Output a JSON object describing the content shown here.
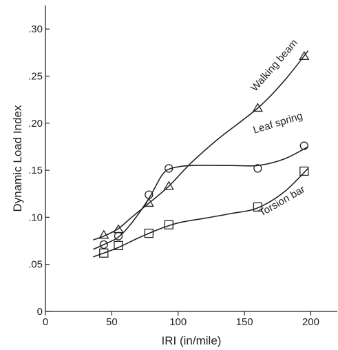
{
  "chart_data": {
    "type": "line",
    "title": "",
    "xlabel": "IRI (in/mile)",
    "ylabel": "Dynamic Load Index",
    "xlim": [
      0,
      220
    ],
    "ylim": [
      0,
      0.325
    ],
    "x_ticks": [
      0,
      50,
      100,
      150,
      200
    ],
    "x_tick_labels": [
      "0",
      "50",
      "100",
      "150",
      "200"
    ],
    "y_ticks": [
      0,
      0.05,
      0.1,
      0.15,
      0.2,
      0.25,
      0.3
    ],
    "y_tick_labels": [
      "0",
      ".05",
      ".10",
      ".15",
      ".20",
      ".25",
      ".30"
    ],
    "grid": false,
    "legend": "none",
    "series": [
      {
        "name": "Walking beam",
        "marker": "triangle",
        "points": [
          [
            44,
            0.081
          ],
          [
            55,
            0.087
          ],
          [
            78,
            0.115
          ],
          [
            93,
            0.133
          ],
          [
            160,
            0.216
          ],
          [
            195,
            0.271
          ]
        ],
        "curve": [
          [
            36,
            0.076
          ],
          [
            44,
            0.08
          ],
          [
            55,
            0.088
          ],
          [
            65,
            0.1
          ],
          [
            78,
            0.115
          ],
          [
            93,
            0.133
          ],
          [
            110,
            0.158
          ],
          [
            130,
            0.183
          ],
          [
            160,
            0.216
          ],
          [
            180,
            0.245
          ],
          [
            198,
            0.277
          ]
        ],
        "label_text": "Walking beam"
      },
      {
        "name": "Leaf spring",
        "marker": "circle",
        "points": [
          [
            44,
            0.071
          ],
          [
            55,
            0.08
          ],
          [
            78,
            0.124
          ],
          [
            93,
            0.152
          ],
          [
            160,
            0.152
          ],
          [
            195,
            0.176
          ]
        ],
        "curve": [
          [
            36,
            0.066
          ],
          [
            44,
            0.071
          ],
          [
            55,
            0.079
          ],
          [
            65,
            0.094
          ],
          [
            78,
            0.12
          ],
          [
            88,
            0.145
          ],
          [
            95,
            0.152
          ],
          [
            110,
            0.155
          ],
          [
            140,
            0.155
          ],
          [
            160,
            0.155
          ],
          [
            180,
            0.162
          ],
          [
            198,
            0.175
          ]
        ],
        "label_text": "Leaf spring"
      },
      {
        "name": "Torsion bar",
        "marker": "square",
        "points": [
          [
            44,
            0.062
          ],
          [
            55,
            0.07
          ],
          [
            78,
            0.083
          ],
          [
            93,
            0.092
          ],
          [
            160,
            0.111
          ],
          [
            195,
            0.149
          ]
        ],
        "curve": [
          [
            36,
            0.058
          ],
          [
            44,
            0.062
          ],
          [
            55,
            0.068
          ],
          [
            70,
            0.078
          ],
          [
            85,
            0.087
          ],
          [
            100,
            0.094
          ],
          [
            120,
            0.099
          ],
          [
            140,
            0.104
          ],
          [
            160,
            0.11
          ],
          [
            180,
            0.127
          ],
          [
            198,
            0.152
          ]
        ],
        "label_text": "Torsion bar"
      }
    ]
  }
}
